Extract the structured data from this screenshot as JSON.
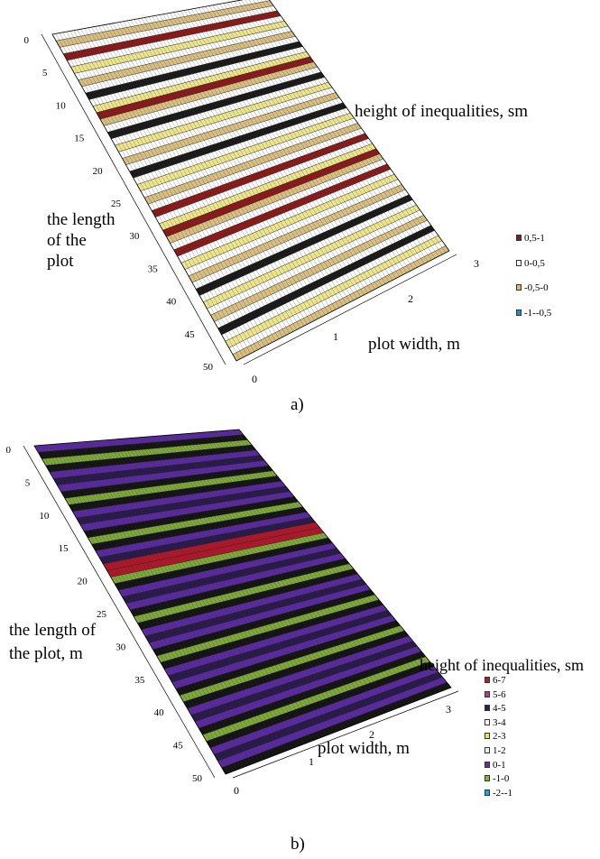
{
  "chart_data": [
    {
      "panel": "a)",
      "type": "surface",
      "zlabel": "height of inequalities, sm",
      "ylabel": "the length\nof the\nplot",
      "xlabel": "plot width, m",
      "y_ticks": [
        "0",
        "5",
        "10",
        "15",
        "20",
        "25",
        "30",
        "35",
        "40",
        "45",
        "50"
      ],
      "x_ticks": [
        "0",
        "1",
        "2",
        "3"
      ],
      "ylim": [
        0,
        50
      ],
      "xlim": [
        0,
        3
      ],
      "legend": [
        {
          "label": "0,5-1",
          "color": "#8b1a1a"
        },
        {
          "label": "0-0,5",
          "color": "#ffffff"
        },
        {
          "label": "-0,5-0",
          "color": "#d9b96a"
        },
        {
          "label": "-1--0,5",
          "color": "#2f8fb0"
        }
      ],
      "colors": {
        "grid_dark": "#1a1a1a",
        "band_light": "#ffffff",
        "band_tan": "#d8bf80",
        "band_red": "#8b1a1a",
        "band_yellow": "#ece58a"
      }
    },
    {
      "panel": "b)",
      "type": "surface",
      "zlabel": "height of inequalities, sm",
      "ylabel": "the length of\nthe plot, m",
      "xlabel": "plot width, m",
      "y_ticks": [
        "0",
        "5",
        "10",
        "15",
        "20",
        "25",
        "30",
        "35",
        "40",
        "45",
        "50"
      ],
      "x_ticks": [
        "0",
        "1",
        "2",
        "3"
      ],
      "ylim": [
        0,
        50
      ],
      "xlim": [
        0,
        3
      ],
      "legend": [
        {
          "label": "6-7",
          "color": "#c0182a"
        },
        {
          "label": "5-6",
          "color": "#c2338a"
        },
        {
          "label": "4-5",
          "color": "#1c2a4a"
        },
        {
          "label": "3-4",
          "color": "#ffffff"
        },
        {
          "label": "2-3",
          "color": "#e9e64a"
        },
        {
          "label": "1-2",
          "color": "#e8eef0"
        },
        {
          "label": "0-1",
          "color": "#6a2fa0"
        },
        {
          "label": "-1-0",
          "color": "#7fb83a"
        },
        {
          "label": "-2--1",
          "color": "#2aa0d8"
        }
      ],
      "colors": {
        "grid_dark": "#141414",
        "band_purple": "#5a2aa0",
        "band_green": "#7ea83a",
        "band_white": "#f2f2f2",
        "band_red": "#b0182a"
      }
    }
  ]
}
